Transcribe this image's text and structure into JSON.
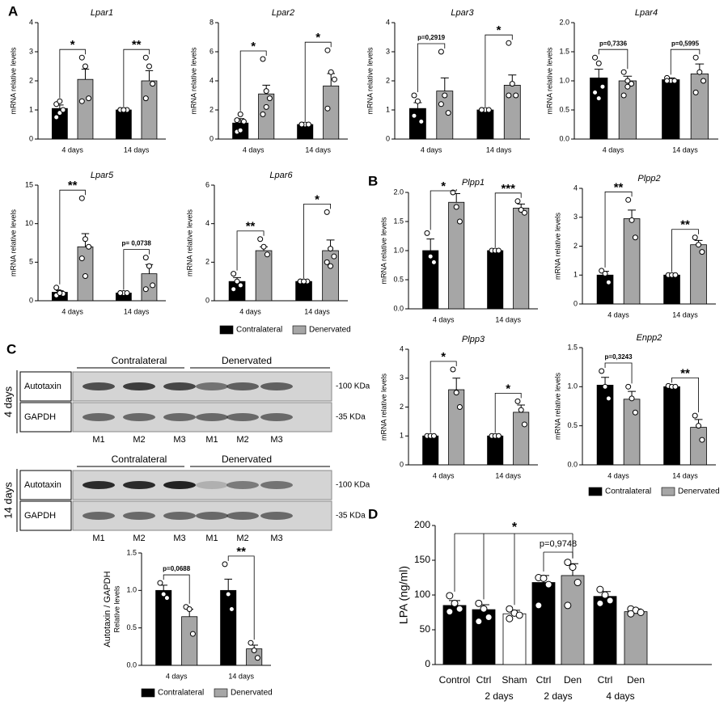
{
  "panel_labels": [
    "A",
    "B",
    "C",
    "D"
  ],
  "blots": [
    {
      "time": "4 days",
      "groups": [
        "Contralateral",
        "Denervated"
      ],
      "rows": [
        "Autotaxin",
        "GAPDH"
      ],
      "sizes": [
        "-100 KDa",
        "-35 KDa"
      ],
      "lanes": [
        "M1",
        "M2",
        "M3",
        "M1",
        "M2",
        "M3"
      ]
    },
    {
      "time": "14 days",
      "groups": [
        "Contralateral",
        "Denervated"
      ],
      "rows": [
        "Autotaxin",
        "GAPDH"
      ],
      "sizes": [
        "-100 KDa",
        "-35 KDa"
      ],
      "lanes": [
        "M1",
        "M2",
        "M3",
        "M1",
        "M2",
        "M3"
      ]
    }
  ],
  "chart_data": [
    {
      "type": "bar",
      "title": "Lpar1",
      "ylabel": "mRNA relative levels",
      "categories": [
        "4 days",
        "14 days"
      ],
      "ylim": [
        0,
        4
      ],
      "yticks": [
        0,
        1,
        2,
        3,
        4
      ],
      "annotations": [
        "*",
        "**"
      ],
      "series": [
        {
          "color": "#000000",
          "values": [
            1.05,
            1.0
          ],
          "errors": [
            0.12,
            0.0
          ],
          "points": [
            [
              0.75,
              0.9,
              1.0,
              1.2,
              1.3
            ],
            [
              1,
              1,
              1,
              1,
              1
            ]
          ]
        },
        {
          "color": "#a6a6a6",
          "values": [
            2.05,
            2.0
          ],
          "errors": [
            0.35,
            0.35
          ],
          "points": [
            [
              2.8,
              2.5,
              1.4,
              1.3
            ],
            [
              2.8,
              2.5,
              1.9,
              1.4
            ]
          ]
        }
      ]
    },
    {
      "type": "bar",
      "title": "Lpar2",
      "ylabel": "mRNA relative levels",
      "categories": [
        "4 days",
        "14 days"
      ],
      "ylim": [
        0,
        8
      ],
      "yticks": [
        0,
        2,
        4,
        6,
        8
      ],
      "annotations": [
        "*",
        "*"
      ],
      "series": [
        {
          "color": "#000000",
          "values": [
            1.1,
            1.0
          ],
          "errors": [
            0.3,
            0.0
          ],
          "points": [
            [
              0.5,
              0.6,
              1.2,
              1.3,
              1.7
            ],
            [
              1,
              1,
              1,
              1
            ]
          ]
        },
        {
          "color": "#a6a6a6",
          "values": [
            3.1,
            3.65
          ],
          "errors": [
            0.6,
            0.85
          ],
          "points": [
            [
              5.5,
              3.3,
              2.8,
              1.7,
              2.2
            ],
            [
              6.1,
              4.6,
              4.1,
              2.1
            ]
          ]
        }
      ]
    },
    {
      "type": "bar",
      "title": "Lpar3",
      "ylabel": "mRNA relative levels",
      "categories": [
        "4 days",
        "14 days"
      ],
      "ylim": [
        0,
        4
      ],
      "yticks": [
        0,
        1,
        2,
        3,
        4
      ],
      "annotations": [
        "p=0,2919",
        "*"
      ],
      "series": [
        {
          "color": "#000000",
          "values": [
            1.05,
            1.0
          ],
          "errors": [
            0.2,
            0.0
          ],
          "points": [
            [
              1.5,
              1.3,
              0.6,
              0.8
            ],
            [
              1,
              1,
              1,
              1
            ]
          ]
        },
        {
          "color": "#a6a6a6",
          "values": [
            1.65,
            1.85
          ],
          "errors": [
            0.45,
            0.35
          ],
          "points": [
            [
              3.0,
              1.5,
              0.9,
              1.2
            ],
            [
              3.3,
              1.9,
              1.5,
              1.5
            ]
          ]
        }
      ]
    },
    {
      "type": "bar",
      "title": "Lpar4",
      "ylabel": "mRNA relative levels",
      "categories": [
        "4 days",
        "14 days"
      ],
      "ylim": [
        0,
        2
      ],
      "yticks": [
        {
          "value": 0,
          "label": "0.0"
        },
        0.5,
        {
          "value": 1,
          "label": "1.0"
        },
        1.5,
        {
          "value": 2,
          "label": "2.0"
        }
      ],
      "annotations": [
        "p=0,7336",
        "p=0,5995"
      ],
      "series": [
        {
          "color": "#000000",
          "values": [
            1.05,
            1.02
          ],
          "errors": [
            0.15,
            0.03
          ],
          "points": [
            [
              1.4,
              1.3,
              0.9,
              0.8,
              0.7
            ],
            [
              1.05,
              1.0,
              1.0,
              1.0
            ]
          ]
        },
        {
          "color": "#a6a6a6",
          "values": [
            1.0,
            1.12
          ],
          "errors": [
            0.08,
            0.17
          ],
          "points": [
            [
              1.15,
              1.0,
              0.95,
              0.75,
              0.9
            ],
            [
              1.4,
              1.15,
              1.0,
              0.8
            ]
          ]
        }
      ]
    },
    {
      "type": "bar",
      "title": "Lpar5",
      "ylabel": "mRNA relative levels",
      "categories": [
        "4 days",
        "14 days"
      ],
      "ylim": [
        0,
        15
      ],
      "yticks": [
        0,
        5,
        10,
        15
      ],
      "annotations": [
        "**",
        "p= 0,0738"
      ],
      "series": [
        {
          "color": "#000000",
          "values": [
            1.1,
            1.0
          ],
          "errors": [
            0.2,
            0.0
          ],
          "points": [
            [
              1.7,
              1.1,
              0.9,
              0.7,
              1.0
            ],
            [
              1,
              1,
              1,
              1
            ]
          ]
        },
        {
          "color": "#a6a6a6",
          "values": [
            7.0,
            3.5
          ],
          "errors": [
            1.7,
            1.2
          ],
          "points": [
            [
              13.3,
              8.0,
              7.0,
              5.5,
              3.2
            ],
            [
              5.6,
              4.5,
              2.0,
              1.5
            ]
          ]
        }
      ]
    },
    {
      "type": "bar",
      "title": "Lpar6",
      "ylabel": "mRNA relative levels",
      "categories": [
        "4 days",
        "14 days"
      ],
      "ylim": [
        0,
        6
      ],
      "yticks": [
        0,
        2,
        4,
        6
      ],
      "annotations": [
        "**",
        "*"
      ],
      "legend": "bottom",
      "series": [
        {
          "name": "Contralateral",
          "color": "#000000",
          "values": [
            1.0,
            1.0
          ],
          "errors": [
            0.2,
            0.0
          ],
          "points": [
            [
              1.4,
              1.0,
              0.8,
              0.6
            ],
            [
              1,
              1,
              1,
              1,
              1
            ]
          ]
        },
        {
          "name": "Denervated",
          "color": "#a6a6a6",
          "values": [
            2.6,
            2.6
          ],
          "errors": [
            0.2,
            0.55
          ],
          "points": [
            [
              3.2,
              2.8,
              2.4
            ],
            [
              4.6,
              2.7,
              2.3,
              2.0,
              1.8
            ]
          ]
        }
      ]
    },
    {
      "type": "bar",
      "title": "Plpp1",
      "ylabel": "mRNA relative levels",
      "categories": [
        "4 days",
        "14 days"
      ],
      "ylim": [
        0,
        2
      ],
      "yticks": [
        {
          "value": 0,
          "label": "0.0"
        },
        0.5,
        {
          "value": 1,
          "label": "1.0"
        },
        1.5,
        {
          "value": 2,
          "label": "2.0"
        }
      ],
      "annotations": [
        "*",
        "***"
      ],
      "series": [
        {
          "color": "#000000",
          "values": [
            1.0,
            1.0
          ],
          "errors": [
            0.2,
            0.0
          ],
          "points": [
            [
              1.3,
              0.9,
              0.8
            ],
            [
              1,
              1,
              1
            ]
          ]
        },
        {
          "color": "#a6a6a6",
          "values": [
            1.83,
            1.73
          ],
          "errors": [
            0.15,
            0.07
          ],
          "points": [
            [
              2.0,
              1.75,
              1.5
            ],
            [
              1.85,
              1.7,
              1.65
            ]
          ]
        }
      ]
    },
    {
      "type": "bar",
      "title": "Plpp2",
      "ylabel": "mRNA relative levels",
      "categories": [
        "4 days",
        "14 days"
      ],
      "ylim": [
        0,
        4
      ],
      "yticks": [
        0,
        1,
        2,
        3,
        4
      ],
      "annotations": [
        "**",
        "**"
      ],
      "series": [
        {
          "color": "#000000",
          "values": [
            1.0,
            1.0
          ],
          "errors": [
            0.13,
            0.0
          ],
          "points": [
            [
              1.15,
              1.05,
              0.75
            ],
            [
              1,
              1,
              1
            ]
          ]
        },
        {
          "color": "#a6a6a6",
          "values": [
            2.95,
            2.05
          ],
          "errors": [
            0.3,
            0.15
          ],
          "points": [
            [
              3.6,
              2.9,
              2.3
            ],
            [
              2.3,
              2.05,
              1.8
            ]
          ]
        }
      ]
    },
    {
      "type": "bar",
      "title": "Plpp3",
      "ylabel": "mRNA relative levels",
      "categories": [
        "4 days",
        "14 days"
      ],
      "ylim": [
        0,
        4
      ],
      "yticks": [
        0,
        1,
        2,
        3,
        4
      ],
      "annotations": [
        "*",
        "*"
      ],
      "series": [
        {
          "color": "#000000",
          "values": [
            1.0,
            1.0
          ],
          "errors": [
            0.0,
            0.0
          ],
          "points": [
            [
              1,
              1,
              1
            ],
            [
              1,
              1,
              1
            ]
          ]
        },
        {
          "color": "#a6a6a6",
          "values": [
            2.6,
            1.82
          ],
          "errors": [
            0.4,
            0.25
          ],
          "points": [
            [
              3.3,
              2.5,
              2.0
            ],
            [
              2.2,
              1.9,
              1.4
            ]
          ]
        }
      ]
    },
    {
      "type": "bar",
      "title": "Enpp2",
      "ylabel": "mRNA relative levels",
      "categories": [
        "4 days",
        "14 days"
      ],
      "ylim": [
        0,
        1.5
      ],
      "yticks": [
        {
          "value": 0,
          "label": "0.0"
        },
        0.5,
        {
          "value": 1,
          "label": "1.0"
        },
        1.5
      ],
      "annotations": [
        "p=0,3243",
        "**"
      ],
      "legend": "bottom",
      "series": [
        {
          "name": "Contralateral",
          "color": "#000000",
          "values": [
            1.02,
            1.0
          ],
          "errors": [
            0.1,
            0.01
          ],
          "points": [
            [
              1.2,
              1.0,
              0.85
            ],
            [
              1.01,
              1.0,
              1.0
            ]
          ]
        },
        {
          "name": "Denervated",
          "color": "#a6a6a6",
          "values": [
            0.84,
            0.48
          ],
          "errors": [
            0.1,
            0.1
          ],
          "points": [
            [
              1.0,
              0.85,
              0.67
            ],
            [
              0.63,
              0.5,
              0.32
            ]
          ]
        }
      ]
    },
    {
      "type": "bar",
      "ylabel": "Autotaxin / GAPDH",
      "ylabel_sub": "Relative levels",
      "categories": [
        "4 days",
        "14 days"
      ],
      "ylim": [
        0,
        1.5
      ],
      "yticks": [
        {
          "value": 0,
          "label": "0.0"
        },
        0.5,
        {
          "value": 1,
          "label": "1.0"
        },
        1.5
      ],
      "annotations": [
        "p=0,0688",
        "**"
      ],
      "legend": "bottom",
      "series": [
        {
          "name": "Contralateral",
          "color": "#000000",
          "values": [
            1.0,
            1.0
          ],
          "errors": [
            0.07,
            0.15
          ],
          "points": [
            [
              1.1,
              0.95,
              0.9
            ],
            [
              1.35,
              0.95,
              0.75
            ]
          ]
        },
        {
          "name": "Denervated",
          "color": "#a6a6a6",
          "values": [
            0.65,
            0.22
          ],
          "errors": [
            0.1,
            0.05
          ],
          "points": [
            [
              0.78,
              0.75,
              0.42
            ],
            [
              0.3,
              0.2,
              0.1
            ]
          ]
        }
      ]
    },
    {
      "type": "bar",
      "ylabel": "LPA (ng/ml)",
      "categories": [
        "Control",
        "Ctrl",
        "Sham",
        "Ctrl",
        "Den",
        "Ctrl",
        "Den"
      ],
      "category_groups": [
        "2 days",
        "2 days",
        "4 days"
      ],
      "values": [
        85,
        79,
        73,
        118,
        128,
        98,
        76
      ],
      "errors": [
        7,
        7,
        5,
        10,
        17,
        7,
        4
      ],
      "points": [
        [
          99,
          88,
          80,
          76
        ],
        [
          88,
          80,
          68,
          62
        ],
        [
          80,
          74,
          71,
          66
        ],
        [
          125,
          124,
          115,
          85
        ],
        [
          147,
          140,
          118,
          85
        ],
        [
          108,
          100,
          92,
          88
        ],
        [
          80,
          78,
          75,
          73
        ]
      ],
      "colors": [
        "#000000",
        "#000000",
        "#ffffff",
        "#000000",
        "#a6a6a6",
        "#000000",
        "#a6a6a6"
      ],
      "ylim": [
        0,
        200
      ],
      "yticks": [
        0,
        50,
        100,
        150,
        200
      ],
      "annotations": [
        "*",
        "p=0,9748"
      ]
    }
  ]
}
